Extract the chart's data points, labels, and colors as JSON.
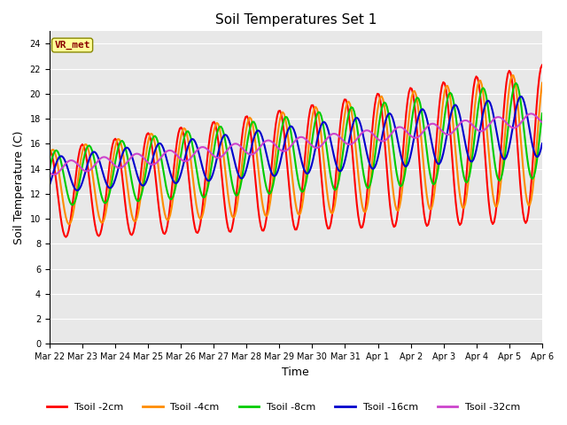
{
  "title": "Soil Temperatures Set 1",
  "xlabel": "Time",
  "ylabel": "Soil Temperature (C)",
  "ylim": [
    0,
    25
  ],
  "yticks": [
    0,
    2,
    4,
    6,
    8,
    10,
    12,
    14,
    16,
    18,
    20,
    22,
    24
  ],
  "annotation_text": "VR_met",
  "annotation_color": "#8B0000",
  "annotation_bg": "#FFFF99",
  "bg_color": "#E8E8E8",
  "series_colors": [
    "#FF0000",
    "#FF8C00",
    "#00CC00",
    "#0000CC",
    "#CC44CC"
  ],
  "series_names": [
    "Tsoil -2cm",
    "Tsoil -4cm",
    "Tsoil -8cm",
    "Tsoil -16cm",
    "Tsoil -32cm"
  ],
  "series_lw": [
    1.5,
    1.5,
    1.5,
    1.5,
    1.5
  ],
  "x_labels": [
    "Mar 22",
    "Mar 23",
    "Mar 24",
    "Mar 25",
    "Mar 26",
    "Mar 27",
    "Mar 28",
    "Mar 29",
    "Mar 30",
    "Mar 31",
    "Apr 1",
    "Apr 2",
    "Apr 3",
    "Apr 4",
    "Apr 5",
    "Apr 6"
  ],
  "n_days": 15,
  "pts_per_day": 24,
  "figsize": [
    6.4,
    4.8
  ],
  "dpi": 100
}
